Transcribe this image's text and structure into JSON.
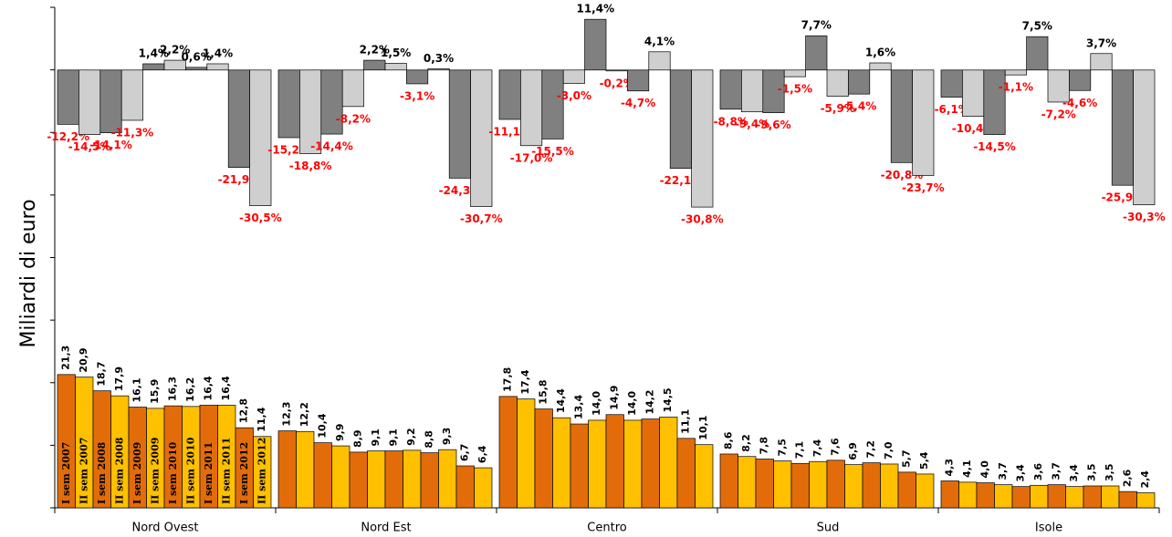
{
  "chart_data": {
    "type": "bar",
    "ylabel": "Miliardi di euro",
    "categories": [
      "I sem 2007",
      "II sem 2007",
      "I sem 2008",
      "II sem 2008",
      "I sem 2009",
      "II sem 2009",
      "I sem 2010",
      "II sem 2010",
      "I sem 2011",
      "II sem 2011",
      "I sem 2012",
      "II sem 2012"
    ],
    "colors": [
      "#e36c0a",
      "#ffc000"
    ],
    "change_colors": [
      "#808080",
      "#cfcfcf"
    ],
    "ylim": [
      0,
      80
    ],
    "yticks": [
      0,
      10,
      20,
      30,
      40,
      50,
      60,
      70,
      80
    ],
    "y2lim": [
      -98.4,
      14.1
    ],
    "groups": [
      {
        "name": "Nord Ovest",
        "values": [
          21.3,
          20.9,
          18.7,
          17.9,
          16.1,
          15.9,
          16.3,
          16.2,
          16.4,
          16.4,
          12.8,
          11.4
        ],
        "value_labels": [
          "21,3",
          "20,9",
          "18,7",
          "17,9",
          "16,1",
          "15,9",
          "16,3",
          "16,2",
          "16,4",
          "16,4",
          "12,8",
          "11,4"
        ],
        "changes": [
          -12.2,
          -14.5,
          -14.1,
          -11.3,
          1.4,
          2.2,
          0.6,
          1.4,
          -21.9,
          -30.5
        ],
        "change_labels": [
          "-12,2%",
          "-14,5%",
          "-14,1%",
          "-11,3%",
          "1,4%",
          "2,2%",
          "0,6%",
          "1,4%",
          "-21,9%",
          "-30,5%"
        ]
      },
      {
        "name": "Nord Est",
        "values": [
          12.3,
          12.2,
          10.4,
          9.9,
          8.9,
          9.1,
          9.1,
          9.2,
          8.8,
          9.3,
          6.7,
          6.4
        ],
        "value_labels": [
          "12,3",
          "12,2",
          "10,4",
          "9,9",
          "8,9",
          "9,1",
          "9,1",
          "9,2",
          "8,8",
          "9,3",
          "6,7",
          "6,4"
        ],
        "changes": [
          -15.2,
          -18.8,
          -14.4,
          -8.2,
          2.2,
          1.5,
          -3.1,
          0.3,
          -24.3,
          -30.7
        ],
        "change_labels": [
          "-15,2%",
          "-18,8%",
          "-14,4%",
          "-8,2%",
          "2,2%",
          "1,5%",
          "-3,1%",
          "0,3%",
          "-24,3%",
          "-30,7%"
        ]
      },
      {
        "name": "Centro",
        "values": [
          17.8,
          17.4,
          15.8,
          14.4,
          13.4,
          14.0,
          14.9,
          14.0,
          14.2,
          14.5,
          11.1,
          10.1
        ],
        "value_labels": [
          "17,8",
          "17,4",
          "15,8",
          "14,4",
          "13,4",
          "14,0",
          "14,9",
          "14,0",
          "14,2",
          "14,5",
          "11,1",
          "10,1"
        ],
        "changes": [
          -11.1,
          -17.0,
          -15.5,
          -3.0,
          11.4,
          -0.2,
          -4.7,
          4.1,
          -22.1,
          -30.8
        ],
        "change_labels": [
          "-11,1%",
          "-17,0%",
          "-15,5%",
          "-3,0%",
          "11,4%",
          "-0,2%",
          "-4,7%",
          "4,1%",
          "-22,1%",
          "-30,8%"
        ]
      },
      {
        "name": "Sud",
        "values": [
          8.6,
          8.2,
          7.8,
          7.5,
          7.1,
          7.4,
          7.6,
          6.9,
          7.2,
          7.0,
          5.7,
          5.4
        ],
        "value_labels": [
          "8,6",
          "8,2",
          "7,8",
          "7,5",
          "7,1",
          "7,4",
          "7,6",
          "6,9",
          "7,2",
          "7,0",
          "5,7",
          "5,4"
        ],
        "changes": [
          -8.8,
          -9.4,
          -9.6,
          -1.5,
          7.7,
          -5.9,
          -5.4,
          1.6,
          -20.8,
          -23.7
        ],
        "change_labels": [
          "-8,8%",
          "-9,4%",
          "-9,6%",
          "-1,5%",
          "7,7%",
          "-5,9%",
          "-5,4%",
          "1,6%",
          "-20,8%",
          "-23,7%"
        ]
      },
      {
        "name": "Isole",
        "values": [
          4.3,
          4.1,
          4.0,
          3.7,
          3.4,
          3.6,
          3.7,
          3.4,
          3.5,
          3.5,
          2.6,
          2.4
        ],
        "value_labels": [
          "4,3",
          "4,1",
          "4,0",
          "3,7",
          "3,4",
          "3,6",
          "3,7",
          "3,4",
          "3,5",
          "3,5",
          "2,6",
          "2,4"
        ],
        "changes": [
          -6.1,
          -10.4,
          -14.5,
          -1.1,
          7.5,
          -7.2,
          -4.6,
          3.7,
          -25.9,
          -30.3
        ],
        "change_labels": [
          "-6,1%",
          "-10,4%",
          "-14,5%",
          "-1,1%",
          "7,5%",
          "-7,2%",
          "-4,6%",
          "3,7%",
          "-25,9%",
          "-30,3%"
        ]
      }
    ]
  }
}
